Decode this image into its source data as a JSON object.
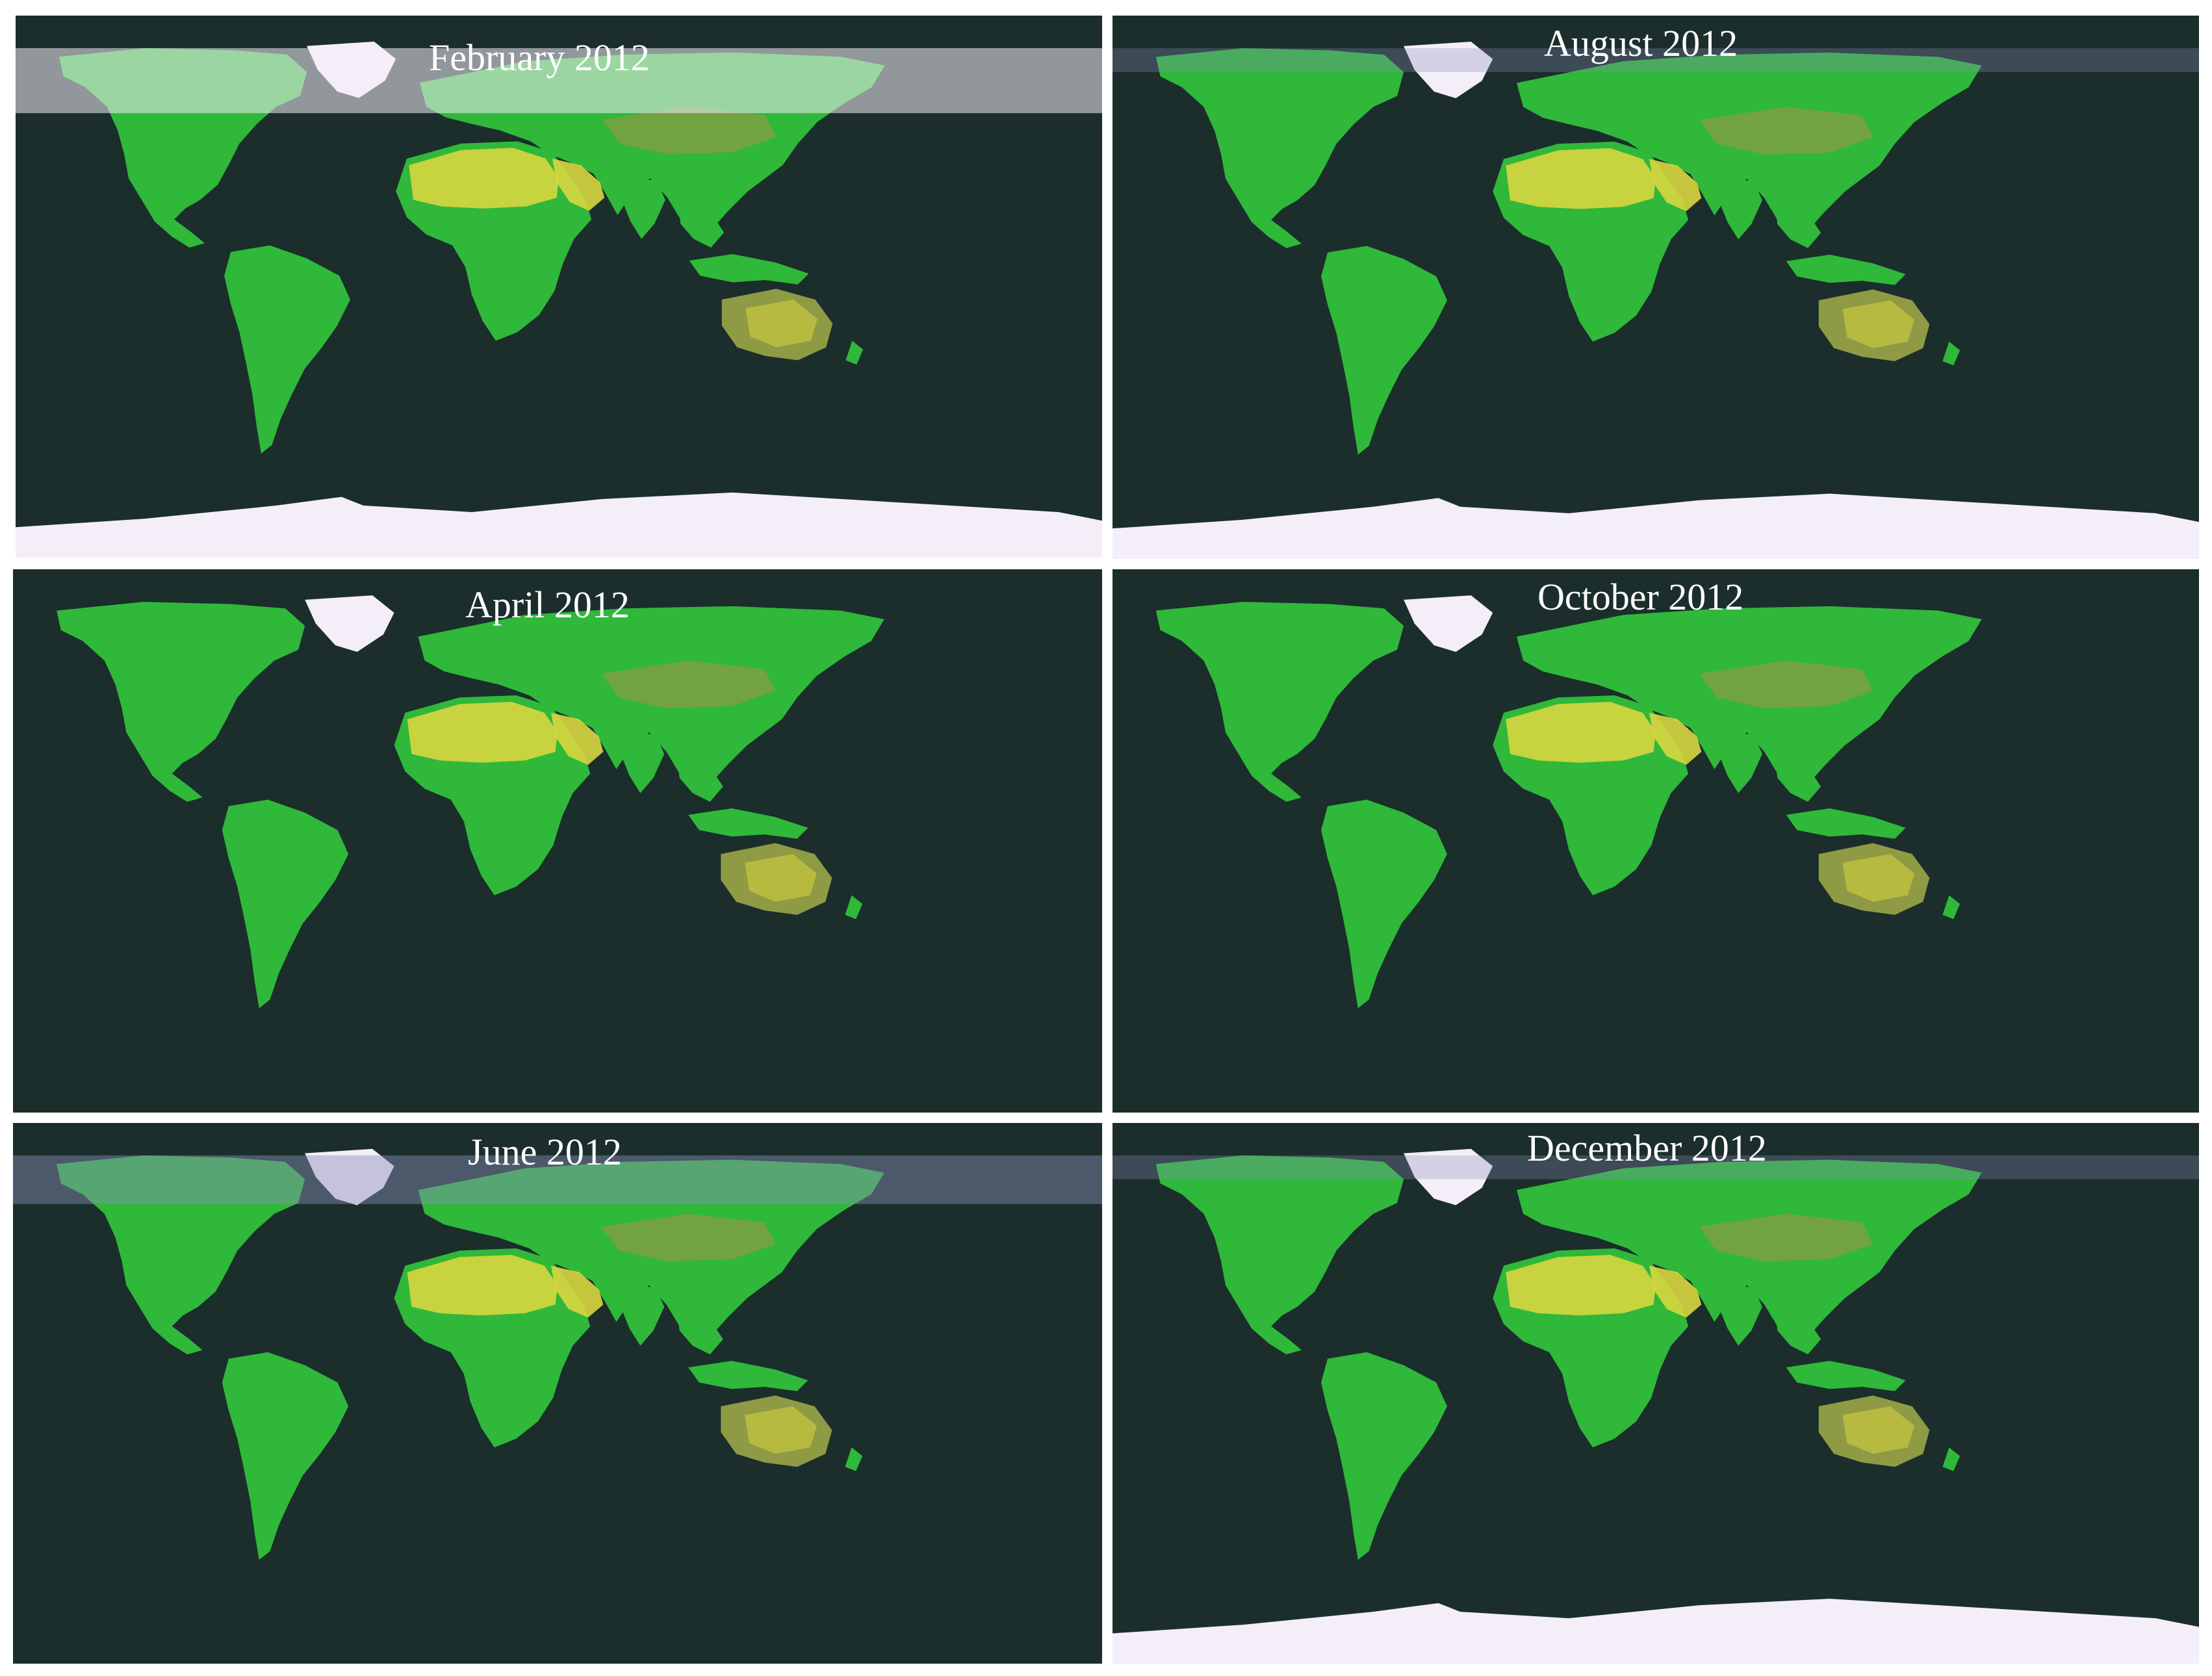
{
  "panels": [
    {
      "title": "February 2012",
      "north_snow": "extensive",
      "antarctica": true
    },
    {
      "title": "August 2012",
      "north_snow": "greenland-only",
      "antarctica": false
    },
    {
      "title": "April 2012",
      "north_snow": "moderate",
      "antarctica": false
    },
    {
      "title": "October 2012",
      "north_snow": "light",
      "antarctica": true
    },
    {
      "title": "June 2012",
      "north_snow": "greenland-only",
      "antarctica": false
    },
    {
      "title": "December 2012",
      "north_snow": "light",
      "antarctica": true
    }
  ],
  "colors": {
    "ocean": "#1b2e2b",
    "vegetation": "#2fb83a",
    "desert": "#d8d640",
    "semi_arid": "#8f9a44",
    "snow": "#f4eef8",
    "tundra": "#8a8fb8"
  }
}
